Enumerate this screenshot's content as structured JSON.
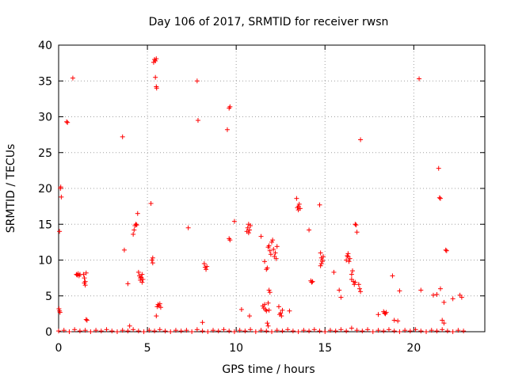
{
  "chart_data": {
    "type": "scatter",
    "title": "Day 106 of 2017, SRMTID for receiver rwsn",
    "xlabel": "GPS time / hours",
    "ylabel": "SRMTID / TECUs",
    "xlim": [
      0,
      24
    ],
    "ylim": [
      0,
      40
    ],
    "xticks": [
      0,
      5,
      10,
      15,
      20
    ],
    "yticks": [
      0,
      5,
      10,
      15,
      20,
      25,
      30,
      35,
      40
    ],
    "grid": true,
    "marker": "+",
    "color": "#ff0000",
    "series": [
      {
        "name": "SRMTID",
        "points": [
          [
            0.05,
            14.0
          ],
          [
            0.1,
            20.0
          ],
          [
            0.12,
            20.2
          ],
          [
            0.15,
            18.8
          ],
          [
            0.02,
            3.2
          ],
          [
            0.05,
            2.9
          ],
          [
            0.08,
            2.7
          ],
          [
            0.45,
            29.3
          ],
          [
            0.5,
            29.2
          ],
          [
            0.8,
            35.4
          ],
          [
            1.0,
            8.0
          ],
          [
            1.05,
            7.9
          ],
          [
            1.1,
            8.1
          ],
          [
            1.15,
            7.8
          ],
          [
            1.2,
            8.0
          ],
          [
            1.4,
            8.0
          ],
          [
            1.45,
            7.5
          ],
          [
            1.5,
            7.0
          ],
          [
            1.5,
            6.5
          ],
          [
            1.55,
            8.2
          ],
          [
            1.55,
            1.7
          ],
          [
            1.6,
            1.6
          ],
          [
            1.45,
            6.8
          ],
          [
            3.6,
            27.2
          ],
          [
            3.7,
            11.4
          ],
          [
            3.9,
            6.7
          ],
          [
            4.0,
            0.8
          ],
          [
            4.2,
            13.6
          ],
          [
            4.25,
            14.2
          ],
          [
            4.3,
            14.8
          ],
          [
            4.35,
            15.0
          ],
          [
            4.4,
            14.9
          ],
          [
            4.45,
            16.5
          ],
          [
            4.5,
            8.3
          ],
          [
            4.55,
            7.8
          ],
          [
            4.6,
            7.5
          ],
          [
            4.6,
            7.2
          ],
          [
            4.65,
            7.6
          ],
          [
            4.7,
            8.0
          ],
          [
            4.7,
            6.9
          ],
          [
            4.75,
            7.3
          ],
          [
            5.2,
            17.9
          ],
          [
            5.25,
            10.0
          ],
          [
            5.3,
            9.6
          ],
          [
            5.3,
            10.3
          ],
          [
            5.35,
            37.6
          ],
          [
            5.4,
            38.0
          ],
          [
            5.45,
            37.8
          ],
          [
            5.5,
            38.1
          ],
          [
            5.45,
            35.5
          ],
          [
            5.5,
            34.2
          ],
          [
            5.52,
            34.0
          ],
          [
            5.5,
            2.2
          ],
          [
            5.55,
            3.5
          ],
          [
            5.6,
            3.8
          ],
          [
            5.65,
            3.6
          ],
          [
            5.7,
            3.9
          ],
          [
            5.75,
            3.4
          ],
          [
            7.3,
            14.5
          ],
          [
            7.8,
            35.0
          ],
          [
            7.85,
            29.5
          ],
          [
            8.1,
            1.3
          ],
          [
            8.2,
            9.5
          ],
          [
            8.25,
            9.0
          ],
          [
            8.3,
            8.7
          ],
          [
            8.35,
            9.1
          ],
          [
            9.5,
            28.2
          ],
          [
            9.6,
            31.2
          ],
          [
            9.65,
            31.4
          ],
          [
            9.6,
            13.0
          ],
          [
            9.65,
            12.8
          ],
          [
            9.9,
            15.4
          ],
          [
            10.3,
            3.1
          ],
          [
            10.6,
            14.0
          ],
          [
            10.65,
            14.5
          ],
          [
            10.7,
            15.0
          ],
          [
            10.75,
            14.2
          ],
          [
            10.7,
            13.8
          ],
          [
            10.8,
            14.8
          ],
          [
            10.75,
            2.2
          ],
          [
            11.4,
            13.3
          ],
          [
            11.5,
            3.6
          ],
          [
            11.55,
            3.3
          ],
          [
            11.6,
            3.8
          ],
          [
            11.65,
            3.1
          ],
          [
            11.7,
            2.9
          ],
          [
            11.6,
            9.8
          ],
          [
            11.7,
            8.7
          ],
          [
            11.75,
            8.9
          ],
          [
            11.8,
            11.8
          ],
          [
            11.85,
            12.0
          ],
          [
            11.9,
            11.3
          ],
          [
            11.95,
            10.8
          ],
          [
            12.0,
            12.5
          ],
          [
            12.05,
            12.8
          ],
          [
            12.1,
            11.5
          ],
          [
            12.15,
            10.5
          ],
          [
            12.2,
            11.0
          ],
          [
            12.25,
            10.2
          ],
          [
            12.3,
            11.9
          ],
          [
            11.85,
            5.8
          ],
          [
            11.9,
            5.5
          ],
          [
            11.8,
            4.0
          ],
          [
            11.85,
            3.0
          ],
          [
            11.75,
            1.2
          ],
          [
            11.8,
            0.8
          ],
          [
            12.4,
            3.5
          ],
          [
            12.45,
            2.4
          ],
          [
            12.5,
            2.6
          ],
          [
            12.55,
            2.2
          ],
          [
            12.6,
            3.0
          ],
          [
            13.0,
            2.9
          ],
          [
            13.4,
            18.6
          ],
          [
            13.45,
            17.3
          ],
          [
            13.5,
            17.5
          ],
          [
            13.55,
            17.8
          ],
          [
            13.6,
            17.2
          ],
          [
            13.5,
            17.0
          ],
          [
            14.1,
            14.2
          ],
          [
            14.2,
            7.1
          ],
          [
            14.25,
            6.9
          ],
          [
            14.3,
            7.0
          ],
          [
            14.7,
            17.7
          ],
          [
            14.75,
            11.0
          ],
          [
            14.8,
            10.3
          ],
          [
            14.85,
            9.8
          ],
          [
            14.8,
            9.5
          ],
          [
            14.9,
            10.5
          ],
          [
            14.75,
            9.2
          ],
          [
            14.85,
            10.0
          ],
          [
            15.5,
            8.3
          ],
          [
            15.8,
            5.8
          ],
          [
            15.9,
            4.8
          ],
          [
            16.2,
            10.0
          ],
          [
            16.25,
            10.6
          ],
          [
            16.3,
            10.9
          ],
          [
            16.35,
            9.8
          ],
          [
            16.4,
            10.2
          ],
          [
            16.3,
            10.5
          ],
          [
            16.5,
            8.0
          ],
          [
            16.5,
            7.3
          ],
          [
            16.55,
            8.5
          ],
          [
            16.6,
            7.0
          ],
          [
            16.65,
            6.6
          ],
          [
            16.7,
            6.9
          ],
          [
            16.7,
            15.0
          ],
          [
            16.75,
            14.9
          ],
          [
            16.8,
            13.9
          ],
          [
            16.9,
            6.6
          ],
          [
            16.95,
            6.0
          ],
          [
            17.0,
            5.6
          ],
          [
            17.0,
            26.8
          ],
          [
            18.0,
            2.4
          ],
          [
            18.3,
            2.8
          ],
          [
            18.35,
            2.6
          ],
          [
            18.4,
            2.5
          ],
          [
            18.45,
            2.7
          ],
          [
            18.8,
            7.8
          ],
          [
            18.9,
            1.6
          ],
          [
            19.1,
            1.5
          ],
          [
            19.2,
            5.7
          ],
          [
            20.3,
            35.3
          ],
          [
            20.4,
            5.8
          ],
          [
            21.1,
            5.1
          ],
          [
            21.3,
            5.2
          ],
          [
            21.4,
            22.8
          ],
          [
            21.45,
            18.7
          ],
          [
            21.5,
            18.6
          ],
          [
            21.5,
            6.0
          ],
          [
            21.6,
            1.6
          ],
          [
            21.7,
            4.1
          ],
          [
            21.7,
            1.2
          ],
          [
            21.8,
            11.4
          ],
          [
            21.85,
            11.3
          ],
          [
            22.2,
            4.6
          ],
          [
            22.6,
            5.1
          ],
          [
            22.7,
            4.8
          ],
          [
            0.0,
            0.1
          ],
          [
            0.3,
            0.2
          ],
          [
            0.6,
            0.0
          ],
          [
            0.9,
            0.3
          ],
          [
            1.2,
            0.1
          ],
          [
            1.5,
            0.2
          ],
          [
            1.8,
            0.0
          ],
          [
            2.1,
            0.2
          ],
          [
            2.4,
            0.1
          ],
          [
            2.7,
            0.3
          ],
          [
            3.0,
            0.1
          ],
          [
            3.3,
            0.0
          ],
          [
            3.6,
            0.2
          ],
          [
            3.9,
            0.1
          ],
          [
            4.2,
            0.3
          ],
          [
            4.5,
            0.1
          ],
          [
            4.8,
            0.0
          ],
          [
            5.1,
            0.2
          ],
          [
            5.4,
            0.1
          ],
          [
            5.7,
            0.3
          ],
          [
            6.0,
            0.1
          ],
          [
            6.3,
            0.0
          ],
          [
            6.6,
            0.2
          ],
          [
            6.9,
            0.1
          ],
          [
            7.2,
            0.2
          ],
          [
            7.5,
            0.0
          ],
          [
            7.8,
            0.3
          ],
          [
            8.1,
            0.1
          ],
          [
            8.4,
            0.0
          ],
          [
            8.7,
            0.2
          ],
          [
            9.0,
            0.1
          ],
          [
            9.3,
            0.3
          ],
          [
            9.6,
            0.1
          ],
          [
            9.9,
            0.0
          ],
          [
            10.2,
            0.2
          ],
          [
            10.5,
            0.1
          ],
          [
            10.8,
            0.3
          ],
          [
            11.1,
            0.0
          ],
          [
            11.4,
            0.2
          ],
          [
            11.7,
            0.1
          ],
          [
            12.0,
            0.0
          ],
          [
            12.3,
            0.2
          ],
          [
            12.6,
            0.1
          ],
          [
            12.9,
            0.3
          ],
          [
            13.2,
            0.1
          ],
          [
            13.5,
            0.0
          ],
          [
            13.8,
            0.2
          ],
          [
            14.1,
            0.1
          ],
          [
            14.4,
            0.3
          ],
          [
            14.7,
            0.1
          ],
          [
            15.0,
            0.0
          ],
          [
            15.3,
            0.2
          ],
          [
            15.6,
            0.1
          ],
          [
            15.9,
            0.3
          ],
          [
            16.2,
            0.1
          ],
          [
            16.5,
            0.5
          ],
          [
            16.8,
            0.2
          ],
          [
            17.1,
            0.1
          ],
          [
            17.4,
            0.3
          ],
          [
            17.7,
            0.0
          ],
          [
            18.0,
            0.2
          ],
          [
            18.3,
            0.1
          ],
          [
            18.6,
            0.3
          ],
          [
            18.9,
            0.1
          ],
          [
            19.2,
            0.0
          ],
          [
            19.5,
            0.2
          ],
          [
            19.8,
            0.1
          ],
          [
            20.1,
            0.3
          ],
          [
            20.4,
            0.1
          ],
          [
            20.7,
            0.0
          ],
          [
            21.0,
            0.2
          ],
          [
            21.3,
            0.1
          ],
          [
            21.6,
            0.3
          ],
          [
            21.9,
            0.1
          ],
          [
            22.2,
            0.0
          ],
          [
            22.5,
            0.2
          ],
          [
            22.8,
            0.1
          ]
        ]
      }
    ]
  }
}
